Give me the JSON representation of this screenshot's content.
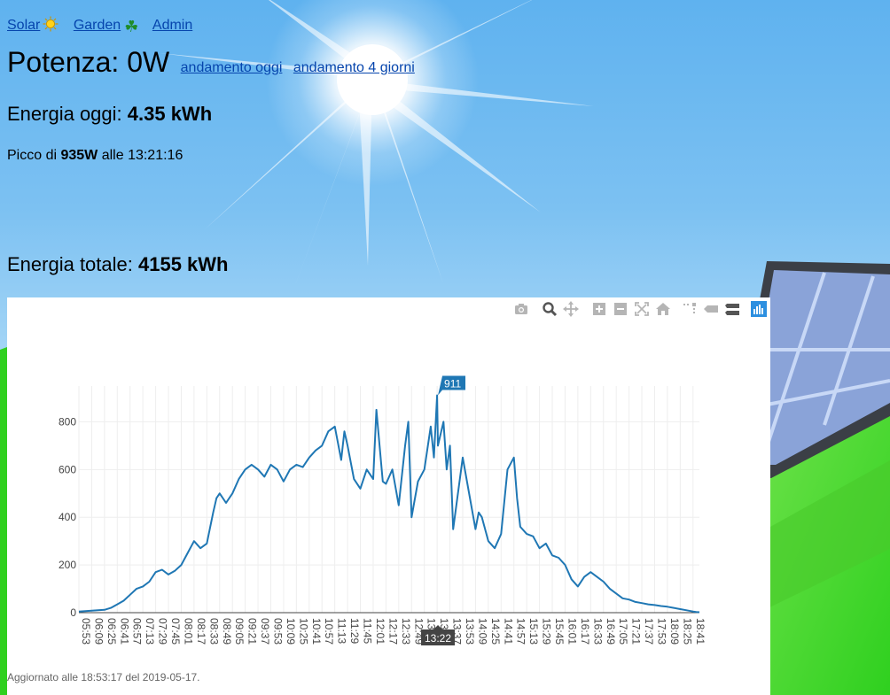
{
  "nav": {
    "items": [
      {
        "label": "Solar",
        "icon": "sun-icon"
      },
      {
        "label": "Garden",
        "icon": "clover-icon"
      },
      {
        "label": "Admin"
      }
    ]
  },
  "power": {
    "label": "Potenza: 0W",
    "link_today": "andamento oggi",
    "link_4days": "andamento 4 giorni"
  },
  "energy_today": {
    "label": "Energia oggi: ",
    "value": "4.35 kWh"
  },
  "peak": {
    "prefix": "Picco di ",
    "value": "935W",
    "suffix": " alle 13:21:16"
  },
  "energy_total": {
    "label": "Energia totale: ",
    "value": "4155 kWh"
  },
  "chart": {
    "modebar": [
      "camera-icon",
      "zoom-icon",
      "pan-icon",
      "zoom-in-icon",
      "zoom-out-icon",
      "autoscale-icon",
      "reset-axes-icon",
      "spike-lines-icon",
      "hover-closest-icon",
      "hover-compare-icon",
      "plotly-logo-icon"
    ],
    "hover_value": "911",
    "hover_time": "13:22",
    "line_color": "#1f77b4"
  },
  "chart_data": {
    "type": "line",
    "title": "",
    "xlabel": "",
    "ylabel": "",
    "ylim": [
      0,
      950
    ],
    "yticks": [
      0,
      200,
      400,
      600,
      800
    ],
    "xticks": [
      "05:53",
      "06:09",
      "06:25",
      "06:41",
      "06:57",
      "07:13",
      "07:29",
      "07:45",
      "08:01",
      "08:17",
      "08:33",
      "08:49",
      "09:05",
      "09:21",
      "09:37",
      "09:53",
      "10:09",
      "10:25",
      "10:41",
      "10:57",
      "11:13",
      "11:29",
      "11:45",
      "12:01",
      "12:17",
      "12:33",
      "12:49",
      "13:05",
      "13:21",
      "13:37",
      "13:53",
      "14:09",
      "14:25",
      "14:41",
      "14:57",
      "15:13",
      "15:29",
      "15:45",
      "16:01",
      "16:17",
      "16:33",
      "16:49",
      "17:05",
      "17:21",
      "17:37",
      "17:53",
      "18:09",
      "18:25",
      "18:41"
    ],
    "x": [
      "05:53",
      "06:09",
      "06:17",
      "06:25",
      "06:33",
      "06:41",
      "06:49",
      "06:57",
      "07:05",
      "07:13",
      "07:21",
      "07:29",
      "07:37",
      "07:45",
      "07:53",
      "08:01",
      "08:09",
      "08:17",
      "08:25",
      "08:33",
      "08:41",
      "08:45",
      "08:49",
      "08:57",
      "09:05",
      "09:13",
      "09:21",
      "09:29",
      "09:37",
      "09:45",
      "09:53",
      "10:01",
      "10:09",
      "10:17",
      "10:25",
      "10:33",
      "10:41",
      "10:49",
      "10:57",
      "11:05",
      "11:13",
      "11:21",
      "11:25",
      "11:29",
      "11:37",
      "11:45",
      "11:53",
      "12:01",
      "12:05",
      "12:09",
      "12:13",
      "12:17",
      "12:25",
      "12:33",
      "12:41",
      "12:45",
      "12:49",
      "12:57",
      "13:05",
      "13:13",
      "13:17",
      "13:21",
      "13:22",
      "13:29",
      "13:33",
      "13:37",
      "13:41",
      "13:45",
      "13:53",
      "14:01",
      "14:09",
      "14:13",
      "14:17",
      "14:25",
      "14:33",
      "14:41",
      "14:49",
      "14:57",
      "15:01",
      "15:05",
      "15:13",
      "15:21",
      "15:29",
      "15:37",
      "15:45",
      "15:53",
      "16:01",
      "16:09",
      "16:17",
      "16:25",
      "16:33",
      "16:41",
      "16:49",
      "16:57",
      "17:05",
      "17:13",
      "17:21",
      "17:29",
      "17:37",
      "17:45",
      "17:53",
      "18:01",
      "18:09",
      "18:17",
      "18:25",
      "18:33",
      "18:41",
      "18:45",
      "18:49"
    ],
    "series": [
      {
        "values": [
          5,
          8,
          10,
          12,
          20,
          35,
          50,
          75,
          100,
          110,
          130,
          170,
          180,
          160,
          175,
          200,
          250,
          300,
          270,
          290,
          420,
          480,
          500,
          460,
          500,
          560,
          600,
          620,
          600,
          570,
          620,
          600,
          550,
          600,
          620,
          610,
          650,
          680,
          700,
          760,
          780,
          640,
          760,
          700,
          560,
          520,
          600,
          560,
          850,
          700,
          550,
          540,
          600,
          450,
          700,
          800,
          400,
          550,
          600,
          780,
          650,
          911,
          700,
          800,
          600,
          700,
          350,
          450,
          650,
          500,
          350,
          420,
          400,
          300,
          270,
          330,
          600,
          650,
          480,
          360,
          330,
          320,
          270,
          290,
          240,
          230,
          200,
          140,
          110,
          150,
          170,
          150,
          130,
          100,
          80,
          60,
          55,
          45,
          40,
          35,
          32,
          28,
          25,
          20,
          15,
          10,
          5,
          3,
          2
        ]
      }
    ]
  },
  "footer": {
    "updated": "Aggiornato alle 18:53:17 del 2019-05-17."
  }
}
